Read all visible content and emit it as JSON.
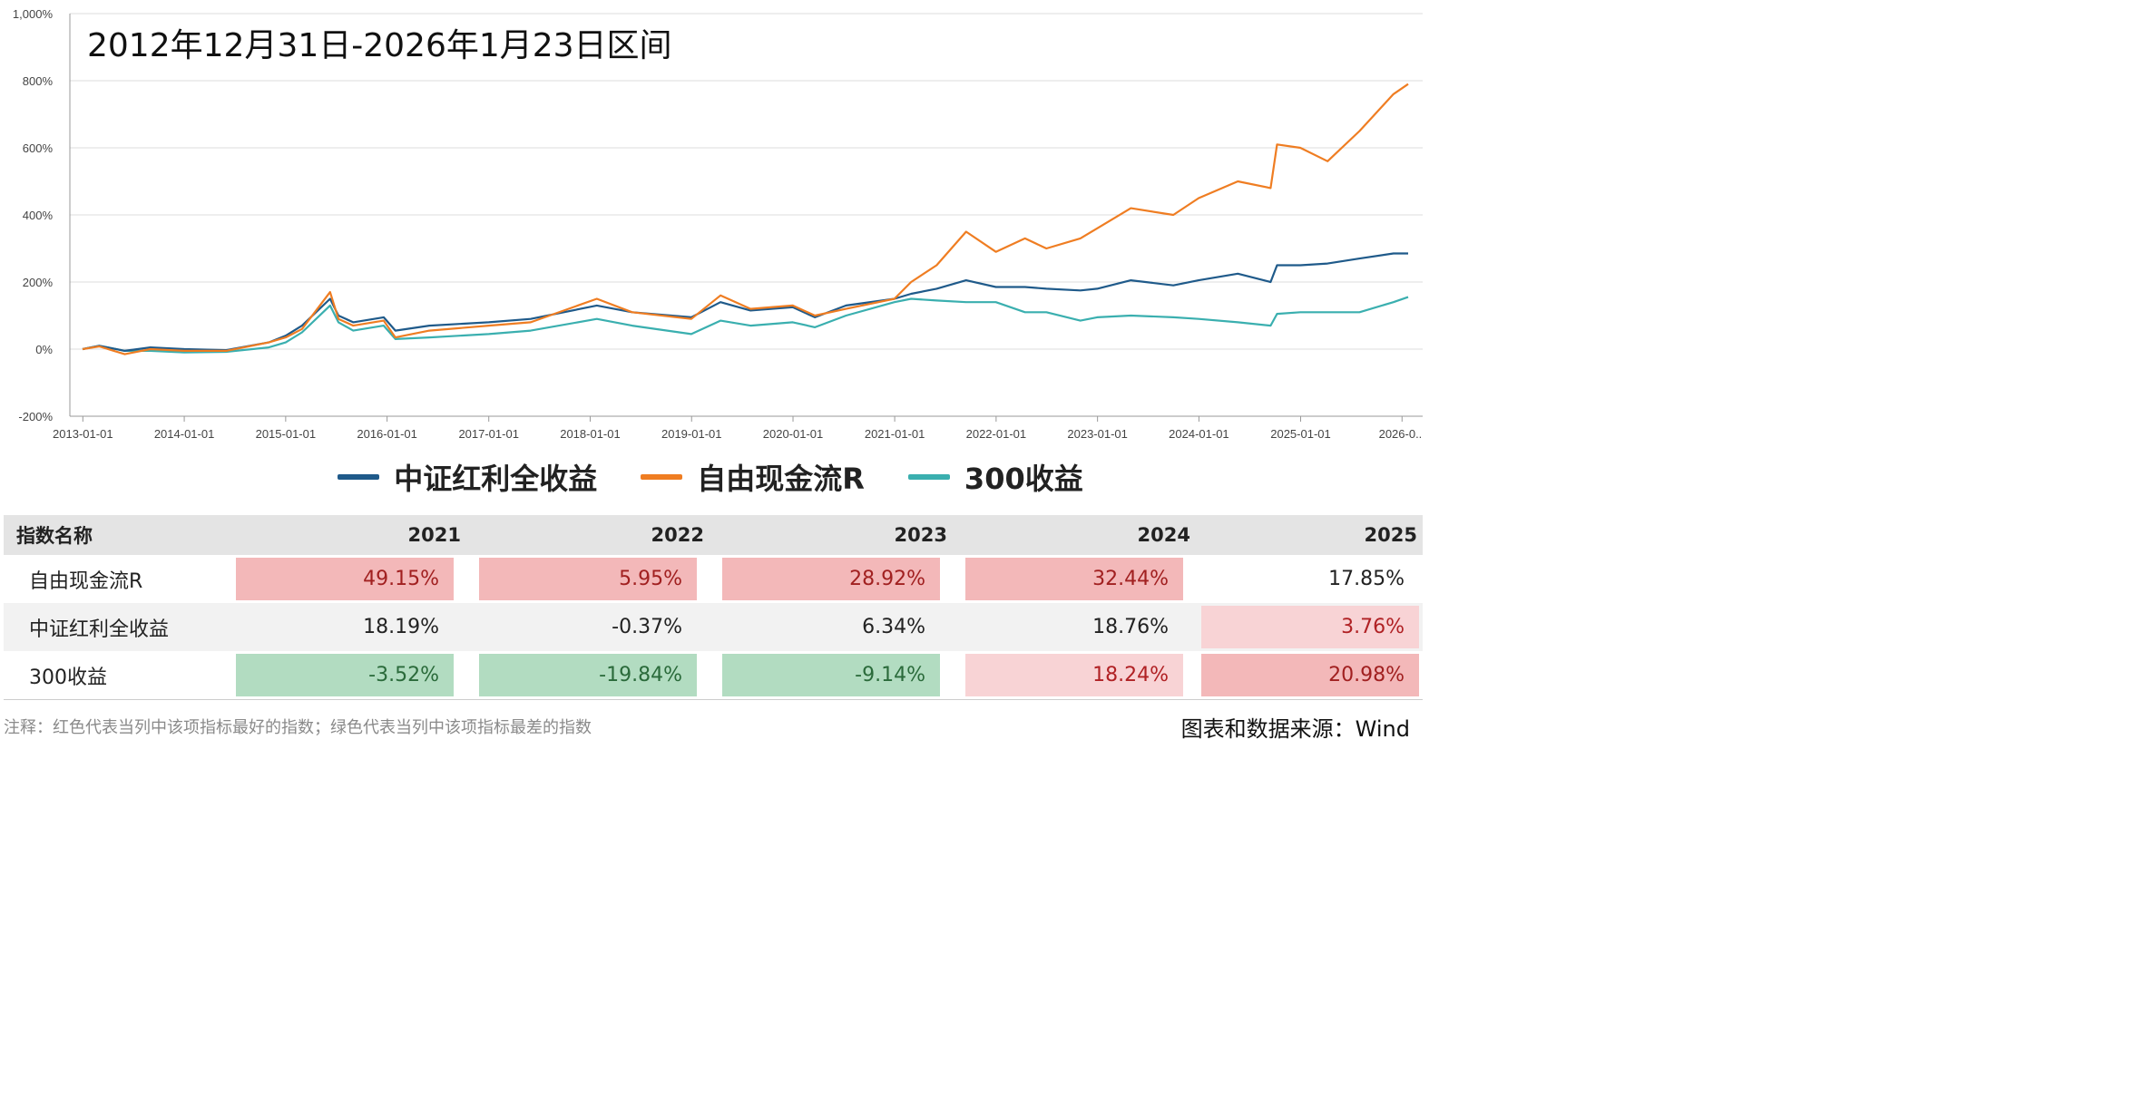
{
  "chart_data": {
    "type": "line",
    "title": "2012年12月31日-2026年1月23日区间",
    "y_ticks": [
      "1,000%",
      "800%",
      "600%",
      "400%",
      "200%",
      "0%",
      "-200%"
    ],
    "ylim": [
      -200,
      1000
    ],
    "x_ticks": [
      "2013-01-01",
      "2014-01-01",
      "2015-01-01",
      "2016-01-01",
      "2017-01-01",
      "2018-01-01",
      "2019-01-01",
      "2020-01-01",
      "2021-01-01",
      "2022-01-01",
      "2023-01-01",
      "2024-01-01",
      "2025-01-01",
      "2026-0..."
    ],
    "xlim": [
      "2012-12-31",
      "2026-01-23"
    ],
    "grid": "horizontal",
    "legend_position": "bottom",
    "series": [
      {
        "name": "中证红利全收益",
        "color": "#1f5a8a",
        "x": [
          "2012-12-31",
          "2013-03-01",
          "2013-06-01",
          "2013-09-01",
          "2014-01-01",
          "2014-06-01",
          "2014-11-01",
          "2015-01-01",
          "2015-03-01",
          "2015-06-10",
          "2015-07-10",
          "2015-09-01",
          "2015-12-20",
          "2016-01-31",
          "2016-06-01",
          "2017-01-01",
          "2017-06-01",
          "2018-01-25",
          "2018-06-01",
          "2018-12-31",
          "2019-04-15",
          "2019-08-01",
          "2019-12-31",
          "2020-03-20",
          "2020-07-10",
          "2020-12-31",
          "2021-03-01",
          "2021-06-01",
          "2021-09-15",
          "2021-12-31",
          "2022-04-15",
          "2022-07-01",
          "2022-10-31",
          "2022-12-31",
          "2023-05-01",
          "2023-10-01",
          "2023-12-31",
          "2024-05-20",
          "2024-09-15",
          "2024-10-08",
          "2024-12-31",
          "2025-04-08",
          "2025-08-01",
          "2025-12-01",
          "2026-01-23"
        ],
        "values": [
          0,
          10,
          -5,
          5,
          0,
          -3,
          20,
          40,
          70,
          150,
          100,
          80,
          95,
          55,
          70,
          80,
          90,
          130,
          110,
          95,
          140,
          115,
          125,
          95,
          130,
          150,
          165,
          180,
          205,
          185,
          185,
          180,
          175,
          180,
          205,
          190,
          205,
          225,
          200,
          250,
          250,
          255,
          270,
          285,
          285
        ]
      },
      {
        "name": "自由现金流R",
        "color": "#ef7d22",
        "x": [
          "2012-12-31",
          "2013-03-01",
          "2013-06-01",
          "2013-09-01",
          "2014-01-01",
          "2014-06-01",
          "2014-11-01",
          "2015-01-01",
          "2015-03-01",
          "2015-06-10",
          "2015-07-10",
          "2015-09-01",
          "2015-12-20",
          "2016-01-31",
          "2016-06-01",
          "2017-01-01",
          "2017-06-01",
          "2018-01-25",
          "2018-06-01",
          "2018-12-31",
          "2019-04-15",
          "2019-08-01",
          "2019-12-31",
          "2020-03-20",
          "2020-07-10",
          "2020-12-31",
          "2021-03-01",
          "2021-06-01",
          "2021-09-15",
          "2021-12-31",
          "2022-04-15",
          "2022-07-01",
          "2022-10-31",
          "2022-12-31",
          "2023-05-01",
          "2023-10-01",
          "2023-12-31",
          "2024-05-20",
          "2024-09-15",
          "2024-10-08",
          "2024-12-31",
          "2025-04-08",
          "2025-08-01",
          "2025-12-01",
          "2026-01-23"
        ],
        "values": [
          0,
          8,
          -15,
          0,
          -5,
          -5,
          20,
          35,
          60,
          170,
          90,
          70,
          85,
          35,
          55,
          70,
          80,
          150,
          110,
          90,
          160,
          120,
          130,
          100,
          120,
          150,
          200,
          250,
          350,
          290,
          330,
          300,
          330,
          360,
          420,
          400,
          450,
          500,
          480,
          610,
          600,
          560,
          650,
          760,
          790
        ]
      },
      {
        "name": "300收益",
        "color": "#3aafaf",
        "x": [
          "2012-12-31",
          "2013-03-01",
          "2013-06-01",
          "2013-09-01",
          "2014-01-01",
          "2014-06-01",
          "2014-11-01",
          "2015-01-01",
          "2015-03-01",
          "2015-06-10",
          "2015-07-10",
          "2015-09-01",
          "2015-12-20",
          "2016-01-31",
          "2016-06-01",
          "2017-01-01",
          "2017-06-01",
          "2018-01-25",
          "2018-06-01",
          "2018-12-31",
          "2019-04-15",
          "2019-08-01",
          "2019-12-31",
          "2020-03-20",
          "2020-07-10",
          "2020-12-31",
          "2021-03-01",
          "2021-06-01",
          "2021-09-15",
          "2021-12-31",
          "2022-04-15",
          "2022-07-01",
          "2022-10-31",
          "2022-12-31",
          "2023-05-01",
          "2023-10-01",
          "2023-12-31",
          "2024-05-20",
          "2024-09-15",
          "2024-10-08",
          "2024-12-31",
          "2025-04-08",
          "2025-08-01",
          "2025-12-01",
          "2026-01-23"
        ],
        "values": [
          0,
          10,
          -5,
          -5,
          -10,
          -8,
          5,
          20,
          50,
          130,
          80,
          55,
          70,
          30,
          35,
          45,
          55,
          90,
          70,
          45,
          85,
          70,
          80,
          65,
          100,
          140,
          150,
          145,
          140,
          140,
          110,
          110,
          85,
          95,
          100,
          95,
          90,
          80,
          70,
          105,
          110,
          110,
          110,
          140,
          155
        ]
      }
    ]
  },
  "legend": {
    "items": [
      {
        "label": "中证红利全收益",
        "color": "#1f5a8a"
      },
      {
        "label": "自由现金流R",
        "color": "#ef7d22"
      },
      {
        "label": "300收益",
        "color": "#3aafaf"
      }
    ]
  },
  "table": {
    "header": {
      "name": "指数名称",
      "years": [
        "2021",
        "2022",
        "2023",
        "2024",
        "2025"
      ]
    },
    "rows": [
      {
        "name": "自由现金流R",
        "cells": [
          {
            "value": "49.15%",
            "hl": "red"
          },
          {
            "value": "5.95%",
            "hl": "red"
          },
          {
            "value": "28.92%",
            "hl": "red"
          },
          {
            "value": "32.44%",
            "hl": "red"
          },
          {
            "value": "17.85%",
            "hl": "none"
          }
        ]
      },
      {
        "name": "中证红利全收益",
        "cells": [
          {
            "value": "18.19%",
            "hl": "none"
          },
          {
            "value": "-0.37%",
            "hl": "none"
          },
          {
            "value": "6.34%",
            "hl": "none"
          },
          {
            "value": "18.76%",
            "hl": "none"
          },
          {
            "value": "3.76%",
            "hl": "pink"
          }
        ]
      },
      {
        "name": "300收益",
        "cells": [
          {
            "value": "-3.52%",
            "hl": "green"
          },
          {
            "value": "-19.84%",
            "hl": "green"
          },
          {
            "value": "-9.14%",
            "hl": "green"
          },
          {
            "value": "18.24%",
            "hl": "pink"
          },
          {
            "value": "20.98%",
            "hl": "red"
          }
        ]
      }
    ]
  },
  "footnote": "注释：红色代表当列中该项指标最好的指数；绿色代表当列中该项指标最差的指数",
  "source": "图表和数据来源：Wind"
}
